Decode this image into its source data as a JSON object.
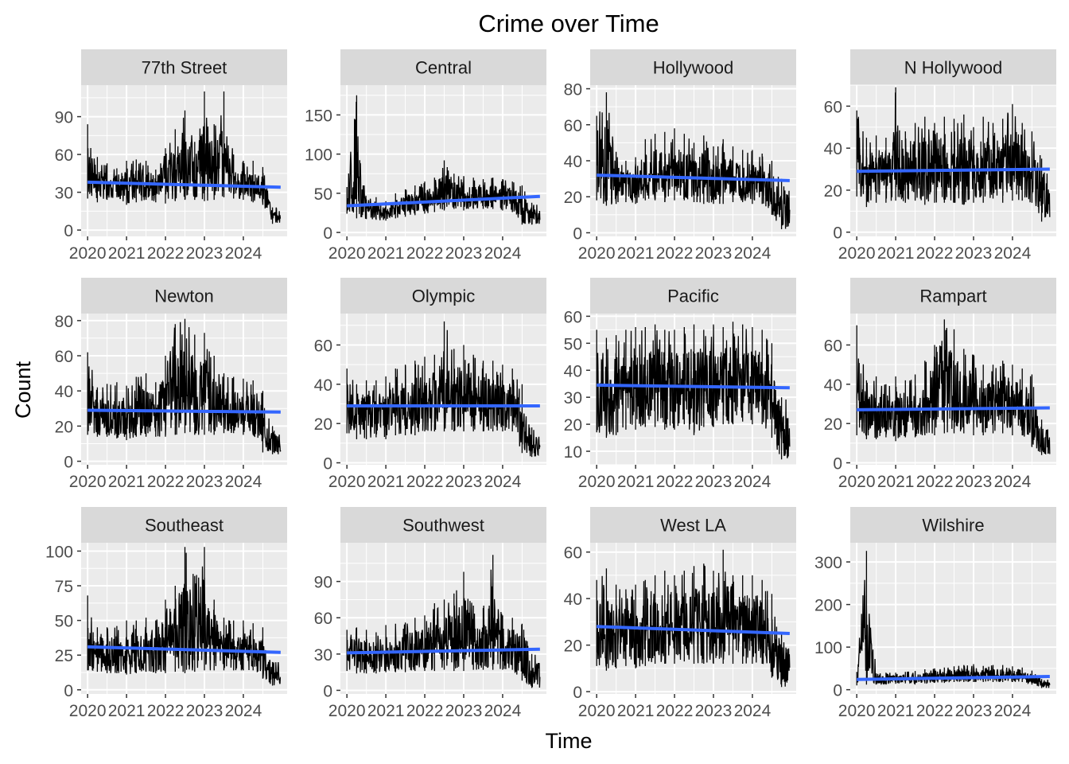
{
  "title": "Crime over Time",
  "xlabel": "Time",
  "ylabel": "Count",
  "colors": {
    "panel_bg": "#EBEBEB",
    "strip_bg": "#D9D9D9",
    "grid_major": "#FFFFFF",
    "series_line": "#000000",
    "trend_line": "#3366FF",
    "tick_text": "#4D4D4D"
  },
  "chart_data": [
    {
      "type": "line",
      "facet": "77th Street",
      "title": "77th Street",
      "x_ticks": [
        "2020",
        "2021",
        "2022",
        "2023",
        "2024"
      ],
      "y_ticks": [
        0,
        30,
        60,
        90
      ],
      "ylim": [
        -5,
        115
      ],
      "series": [
        {
          "x": [
            "2020-01",
            "2020-04",
            "2020-07",
            "2020-10",
            "2021-01",
            "2021-04",
            "2021-07",
            "2021-10",
            "2022-01",
            "2022-04",
            "2022-07",
            "2022-10",
            "2023-01",
            "2023-04",
            "2023-07",
            "2023-10",
            "2024-01",
            "2024-04",
            "2024-07",
            "2024-10"
          ],
          "low": [
            25,
            22,
            24,
            26,
            20,
            22,
            24,
            22,
            21,
            23,
            24,
            24,
            23,
            24,
            26,
            25,
            24,
            22,
            20,
            5
          ],
          "high": [
            84,
            58,
            53,
            49,
            55,
            56,
            55,
            48,
            65,
            80,
            95,
            70,
            110,
            84,
            110,
            60,
            55,
            55,
            50,
            18
          ]
        }
      ],
      "trend": {
        "start": 38,
        "end": 34
      }
    },
    {
      "type": "line",
      "facet": "Central",
      "title": "Central",
      "x_ticks": [
        "2020",
        "2021",
        "2022",
        "2023",
        "2024"
      ],
      "y_ticks": [
        0,
        50,
        100,
        150
      ],
      "ylim": [
        -5,
        188
      ],
      "series": [
        {
          "x": [
            "2020-01",
            "2020-04",
            "2020-07",
            "2020-10",
            "2021-01",
            "2021-04",
            "2021-07",
            "2021-10",
            "2022-01",
            "2022-04",
            "2022-07",
            "2022-10",
            "2023-01",
            "2023-04",
            "2023-07",
            "2023-10",
            "2024-01",
            "2024-04",
            "2024-07",
            "2024-10"
          ],
          "low": [
            24,
            18,
            17,
            16,
            15,
            18,
            20,
            22,
            24,
            26,
            28,
            30,
            28,
            30,
            30,
            30,
            28,
            26,
            10,
            10
          ],
          "high": [
            58,
            175,
            42,
            45,
            40,
            50,
            55,
            60,
            65,
            70,
            92,
            75,
            72,
            70,
            68,
            70,
            68,
            65,
            60,
            38
          ]
        }
      ],
      "trend": {
        "start": 34,
        "end": 46
      }
    },
    {
      "type": "line",
      "facet": "Hollywood",
      "title": "Hollywood",
      "x_ticks": [
        "2020",
        "2021",
        "2022",
        "2023",
        "2024"
      ],
      "y_ticks": [
        0,
        20,
        40,
        60,
        80
      ],
      "ylim": [
        -2,
        82
      ],
      "series": [
        {
          "x": [
            "2020-01",
            "2020-04",
            "2020-07",
            "2020-10",
            "2021-01",
            "2021-04",
            "2021-07",
            "2021-10",
            "2022-01",
            "2022-04",
            "2022-07",
            "2022-10",
            "2023-01",
            "2023-04",
            "2023-07",
            "2023-10",
            "2024-01",
            "2024-04",
            "2024-07",
            "2024-10"
          ],
          "low": [
            18,
            15,
            16,
            17,
            16,
            18,
            18,
            17,
            18,
            18,
            17,
            16,
            16,
            16,
            17,
            17,
            16,
            16,
            10,
            2
          ],
          "high": [
            65,
            78,
            45,
            40,
            42,
            52,
            55,
            56,
            58,
            55,
            50,
            54,
            48,
            52,
            48,
            46,
            46,
            44,
            40,
            30
          ]
        }
      ],
      "trend": {
        "start": 32,
        "end": 29
      }
    },
    {
      "type": "line",
      "facet": "N Hollywood",
      "title": "N Hollywood",
      "x_ticks": [
        "2020",
        "2021",
        "2022",
        "2023",
        "2024"
      ],
      "y_ticks": [
        0,
        20,
        40,
        60
      ],
      "ylim": [
        -2,
        70
      ],
      "series": [
        {
          "x": [
            "2020-01",
            "2020-04",
            "2020-07",
            "2020-10",
            "2021-01",
            "2021-04",
            "2021-07",
            "2021-10",
            "2022-01",
            "2022-04",
            "2022-07",
            "2022-10",
            "2023-01",
            "2023-04",
            "2023-07",
            "2023-10",
            "2024-01",
            "2024-04",
            "2024-07",
            "2024-10"
          ],
          "low": [
            17,
            12,
            14,
            14,
            15,
            14,
            15,
            13,
            14,
            14,
            14,
            13,
            14,
            14,
            16,
            14,
            15,
            15,
            14,
            5
          ],
          "high": [
            58,
            45,
            46,
            45,
            69,
            48,
            52,
            55,
            52,
            55,
            54,
            56,
            50,
            55,
            52,
            54,
            61,
            52,
            48,
            35
          ]
        }
      ],
      "trend": {
        "start": 29,
        "end": 30
      }
    },
    {
      "type": "line",
      "facet": "Newton",
      "title": "Newton",
      "x_ticks": [
        "2020",
        "2021",
        "2022",
        "2023",
        "2024"
      ],
      "y_ticks": [
        0,
        20,
        40,
        60,
        80
      ],
      "ylim": [
        -2,
        84
      ],
      "series": [
        {
          "x": [
            "2020-01",
            "2020-04",
            "2020-07",
            "2020-10",
            "2021-01",
            "2021-04",
            "2021-07",
            "2021-10",
            "2022-01",
            "2022-04",
            "2022-07",
            "2022-10",
            "2023-01",
            "2023-04",
            "2023-07",
            "2023-10",
            "2024-01",
            "2024-04",
            "2024-07",
            "2024-10"
          ],
          "low": [
            15,
            14,
            14,
            13,
            12,
            14,
            14,
            14,
            14,
            15,
            16,
            15,
            15,
            15,
            16,
            16,
            15,
            15,
            5,
            4
          ],
          "high": [
            62,
            42,
            44,
            45,
            43,
            48,
            50,
            45,
            60,
            78,
            81,
            72,
            73,
            60,
            50,
            48,
            47,
            46,
            40,
            20
          ]
        }
      ],
      "trend": {
        "start": 29,
        "end": 28
      }
    },
    {
      "type": "line",
      "facet": "Olympic",
      "title": "Olympic",
      "x_ticks": [
        "2020",
        "2021",
        "2022",
        "2023",
        "2024"
      ],
      "y_ticks": [
        0,
        20,
        40,
        60
      ],
      "ylim": [
        -1,
        76
      ],
      "series": [
        {
          "x": [
            "2020-01",
            "2020-04",
            "2020-07",
            "2020-10",
            "2021-01",
            "2021-04",
            "2021-07",
            "2021-10",
            "2022-01",
            "2022-04",
            "2022-07",
            "2022-10",
            "2023-01",
            "2023-04",
            "2023-07",
            "2023-10",
            "2024-01",
            "2024-04",
            "2024-07",
            "2024-10"
          ],
          "low": [
            15,
            12,
            12,
            13,
            12,
            14,
            14,
            14,
            16,
            16,
            16,
            16,
            16,
            16,
            16,
            16,
            16,
            16,
            5,
            3
          ],
          "high": [
            48,
            40,
            42,
            42,
            44,
            48,
            50,
            52,
            54,
            55,
            72,
            58,
            60,
            55,
            52,
            52,
            50,
            48,
            40,
            18
          ]
        }
      ],
      "trend": {
        "start": 29,
        "end": 29
      }
    },
    {
      "type": "line",
      "facet": "Pacific",
      "title": "Pacific",
      "x_ticks": [
        "2020",
        "2021",
        "2022",
        "2023",
        "2024"
      ],
      "y_ticks": [
        10,
        20,
        30,
        40,
        50,
        60
      ],
      "ylim": [
        5,
        61
      ],
      "series": [
        {
          "x": [
            "2020-01",
            "2020-04",
            "2020-07",
            "2020-10",
            "2021-01",
            "2021-04",
            "2021-07",
            "2021-10",
            "2022-01",
            "2022-04",
            "2022-07",
            "2022-10",
            "2023-01",
            "2023-04",
            "2023-07",
            "2023-10",
            "2024-01",
            "2024-04",
            "2024-07",
            "2024-10"
          ],
          "low": [
            17,
            15,
            16,
            18,
            18,
            19,
            19,
            18,
            18,
            20,
            16,
            19,
            19,
            20,
            20,
            21,
            20,
            20,
            15,
            7
          ],
          "high": [
            55,
            52,
            53,
            55,
            56,
            56,
            57,
            55,
            55,
            56,
            57,
            55,
            57,
            56,
            58,
            57,
            56,
            55,
            50,
            30
          ]
        }
      ],
      "trend": {
        "start": 34.5,
        "end": 33.5
      }
    },
    {
      "type": "line",
      "facet": "Rampart",
      "title": "Rampart",
      "x_ticks": [
        "2020",
        "2021",
        "2022",
        "2023",
        "2024"
      ],
      "y_ticks": [
        0,
        20,
        40,
        60
      ],
      "ylim": [
        -1,
        76
      ],
      "series": [
        {
          "x": [
            "2020-01",
            "2020-04",
            "2020-07",
            "2020-10",
            "2021-01",
            "2021-04",
            "2021-07",
            "2021-10",
            "2022-01",
            "2022-04",
            "2022-07",
            "2022-10",
            "2023-01",
            "2023-04",
            "2023-07",
            "2023-10",
            "2024-01",
            "2024-04",
            "2024-07",
            "2024-10"
          ],
          "low": [
            14,
            12,
            12,
            13,
            11,
            13,
            13,
            14,
            14,
            15,
            15,
            15,
            14,
            14,
            15,
            15,
            14,
            14,
            8,
            4
          ],
          "high": [
            70,
            42,
            44,
            40,
            44,
            42,
            45,
            52,
            60,
            73,
            68,
            58,
            55,
            50,
            50,
            52,
            50,
            48,
            45,
            22
          ]
        }
      ],
      "trend": {
        "start": 27,
        "end": 28
      }
    },
    {
      "type": "line",
      "facet": "Southeast",
      "title": "Southeast",
      "x_ticks": [
        "2020",
        "2021",
        "2022",
        "2023",
        "2024"
      ],
      "y_ticks": [
        0,
        25,
        50,
        75,
        100
      ],
      "ylim": [
        -3,
        106
      ],
      "series": [
        {
          "x": [
            "2020-01",
            "2020-04",
            "2020-07",
            "2020-10",
            "2021-01",
            "2021-04",
            "2021-07",
            "2021-10",
            "2022-01",
            "2022-04",
            "2022-07",
            "2022-10",
            "2023-01",
            "2023-04",
            "2023-07",
            "2023-10",
            "2024-01",
            "2024-04",
            "2024-07",
            "2024-10"
          ],
          "low": [
            14,
            13,
            12,
            12,
            11,
            12,
            13,
            12,
            12,
            13,
            12,
            13,
            14,
            14,
            14,
            14,
            14,
            14,
            8,
            3
          ],
          "high": [
            68,
            45,
            45,
            46,
            50,
            50,
            52,
            50,
            65,
            75,
            103,
            82,
            103,
            65,
            52,
            50,
            50,
            48,
            45,
            20
          ]
        }
      ],
      "trend": {
        "start": 31,
        "end": 27
      }
    },
    {
      "type": "line",
      "facet": "Southwest",
      "title": "Southwest",
      "x_ticks": [
        "2020",
        "2021",
        "2022",
        "2023",
        "2024"
      ],
      "y_ticks": [
        0,
        30,
        60,
        90
      ],
      "ylim": [
        -3,
        122
      ],
      "series": [
        {
          "x": [
            "2020-01",
            "2020-04",
            "2020-07",
            "2020-10",
            "2021-01",
            "2021-04",
            "2021-07",
            "2021-10",
            "2022-01",
            "2022-04",
            "2022-07",
            "2022-10",
            "2023-01",
            "2023-04",
            "2023-07",
            "2023-10",
            "2024-01",
            "2024-04",
            "2024-07",
            "2024-10"
          ],
          "low": [
            16,
            14,
            14,
            14,
            15,
            15,
            15,
            16,
            16,
            16,
            17,
            16,
            16,
            17,
            17,
            17,
            17,
            17,
            8,
            2
          ],
          "high": [
            50,
            52,
            50,
            48,
            54,
            55,
            56,
            60,
            62,
            72,
            75,
            80,
            98,
            70,
            68,
            112,
            62,
            60,
            55,
            30
          ]
        }
      ],
      "trend": {
        "start": 31,
        "end": 34
      }
    },
    {
      "type": "line",
      "facet": "West LA",
      "title": "West LA",
      "x_ticks": [
        "2020",
        "2021",
        "2022",
        "2023",
        "2024"
      ],
      "y_ticks": [
        0,
        20,
        40,
        60
      ],
      "ylim": [
        -1,
        64
      ],
      "series": [
        {
          "x": [
            "2020-01",
            "2020-04",
            "2020-07",
            "2020-10",
            "2021-01",
            "2021-04",
            "2021-07",
            "2021-10",
            "2022-01",
            "2022-04",
            "2022-07",
            "2022-10",
            "2023-01",
            "2023-04",
            "2023-07",
            "2023-10",
            "2024-01",
            "2024-04",
            "2024-07",
            "2024-10"
          ],
          "low": [
            11,
            9,
            10,
            11,
            10,
            11,
            12,
            12,
            12,
            13,
            12,
            12,
            12,
            12,
            12,
            12,
            12,
            12,
            6,
            2
          ],
          "high": [
            48,
            53,
            46,
            44,
            46,
            48,
            50,
            52,
            50,
            52,
            54,
            55,
            52,
            61,
            50,
            50,
            50,
            48,
            42,
            25
          ]
        }
      ],
      "trend": {
        "start": 28,
        "end": 25
      }
    },
    {
      "type": "line",
      "facet": "Wilshire",
      "title": "Wilshire",
      "x_ticks": [
        "2020",
        "2021",
        "2022",
        "2023",
        "2024"
      ],
      "y_ticks": [
        0,
        100,
        200,
        300
      ],
      "ylim": [
        -10,
        345
      ],
      "series": [
        {
          "x": [
            "2020-01",
            "2020-04",
            "2020-07",
            "2020-10",
            "2021-01",
            "2021-04",
            "2021-07",
            "2021-10",
            "2022-01",
            "2022-04",
            "2022-07",
            "2022-10",
            "2023-01",
            "2023-04",
            "2023-07",
            "2023-10",
            "2024-01",
            "2024-04",
            "2024-07",
            "2024-10"
          ],
          "low": [
            10,
            12,
            12,
            12,
            14,
            15,
            14,
            15,
            16,
            16,
            18,
            18,
            18,
            18,
            18,
            18,
            18,
            18,
            12,
            4
          ],
          "high": [
            42,
            326,
            38,
            40,
            40,
            42,
            44,
            48,
            50,
            52,
            55,
            58,
            60,
            56,
            58,
            58,
            55,
            52,
            45,
            25
          ]
        }
      ],
      "trend": {
        "start": 24,
        "end": 31
      }
    }
  ]
}
